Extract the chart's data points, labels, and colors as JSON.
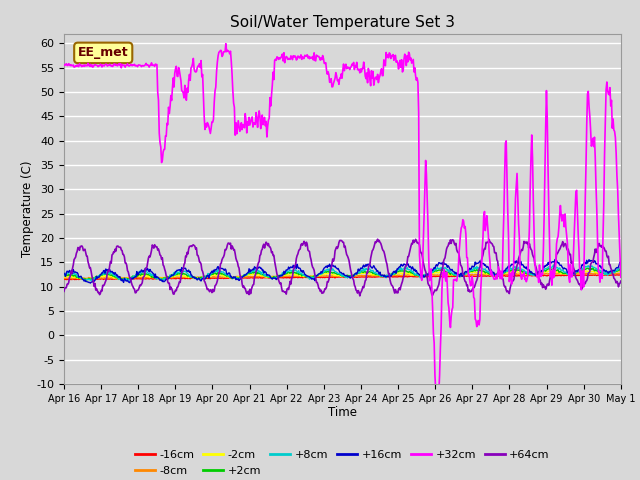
{
  "title": "Soil/Water Temperature Set 3",
  "xlabel": "Time",
  "ylabel": "Temperature (C)",
  "ylim": [
    -10,
    62
  ],
  "yticks": [
    -10,
    -5,
    0,
    5,
    10,
    15,
    20,
    25,
    30,
    35,
    40,
    45,
    50,
    55,
    60
  ],
  "bg_color": "#d8d8d8",
  "plot_bg_color": "#d8d8d8",
  "grid_color": "#ffffff",
  "annotation_text": "EE_met",
  "annotation_bg": "#ffff99",
  "annotation_border": "#996600",
  "line_colors": {
    "-16cm": "#ff0000",
    "-8cm": "#ff8800",
    "-2cm": "#ffff00",
    "+2cm": "#00cc00",
    "+8cm": "#00cccc",
    "+16cm": "#0000cc",
    "+32cm": "#ff00ff",
    "+64cm": "#8800bb"
  },
  "x_tick_labels": [
    "Apr 16",
    "Apr 17",
    "Apr 18",
    "Apr 19",
    "Apr 20",
    "Apr 21",
    "Apr 22",
    "Apr 23",
    "Apr 24",
    "Apr 25",
    "Apr 26",
    "Apr 27",
    "Apr 28",
    "Apr 29",
    "Apr 30",
    "May 1"
  ]
}
